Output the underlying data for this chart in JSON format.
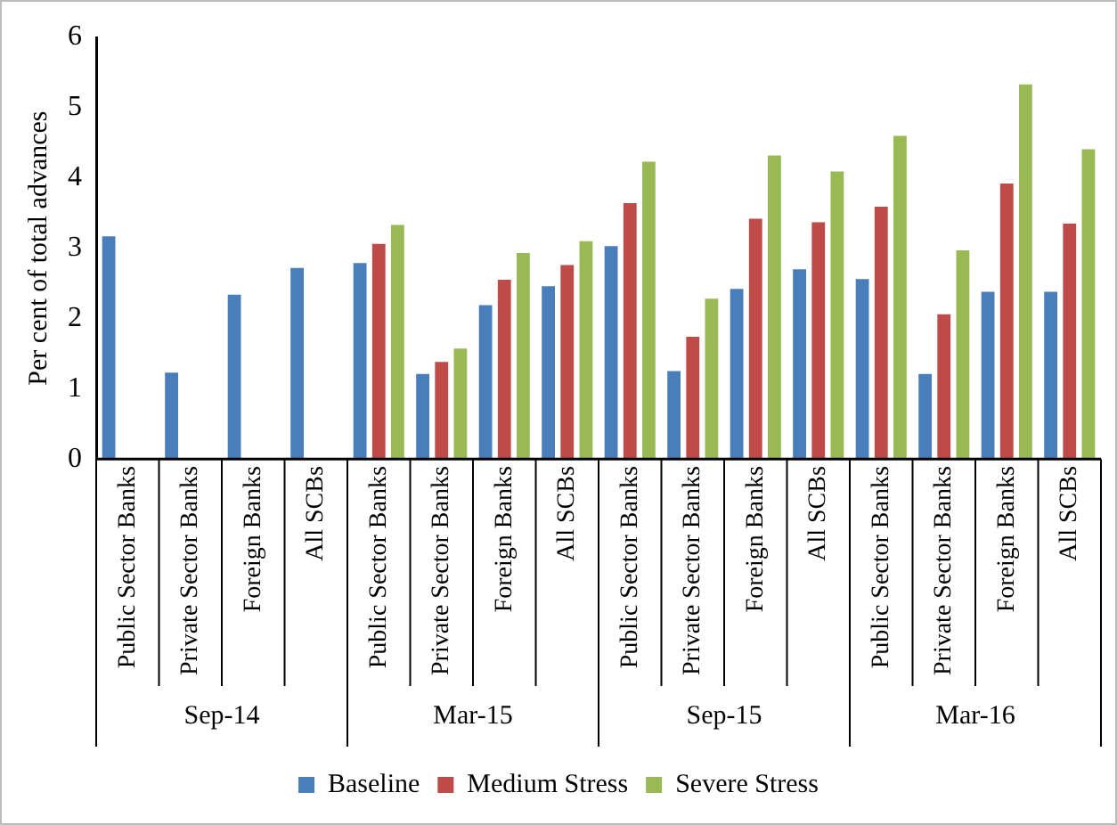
{
  "chart_data": {
    "type": "bar",
    "ylabel": "Per cent of total advances",
    "categories": [
      "Public Sector Banks",
      "Private Sector Banks",
      "Foreign Banks",
      "All SCBs",
      "Public Sector Banks",
      "Private Sector Banks",
      "Foreign Banks",
      "All SCBs",
      "Public Sector Banks",
      "Private Sector Banks",
      "Foreign Banks",
      "All SCBs",
      "Public Sector Banks",
      "Private Sector Banks",
      "Foreign Banks",
      "All SCBs"
    ],
    "series": [
      {
        "name": "Baseline",
        "color": "#4a7ebb",
        "values": [
          3.17,
          1.23,
          2.34,
          2.72,
          2.79,
          1.21,
          2.19,
          2.46,
          3.03,
          1.25,
          2.42,
          2.7,
          2.56,
          1.21,
          2.38,
          2.38
        ]
      },
      {
        "name": "Medium Stress",
        "color": "#be4b48",
        "values": [
          null,
          null,
          null,
          null,
          3.06,
          1.38,
          2.55,
          2.76,
          3.64,
          1.74,
          3.42,
          3.37,
          3.59,
          2.06,
          3.92,
          3.35
        ]
      },
      {
        "name": "Severe Stress",
        "color": "#98b954",
        "values": [
          null,
          null,
          null,
          null,
          3.33,
          1.57,
          2.93,
          3.1,
          4.23,
          2.28,
          4.32,
          4.09,
          4.6,
          2.97,
          5.33,
          4.41
        ]
      }
    ],
    "ylim": [
      0,
      6
    ],
    "yticks": [
      0,
      1,
      2,
      3,
      4,
      5,
      6
    ],
    "annotations": [
      "Sep-14",
      "Mar-15",
      "Sep-15",
      "Mar-16"
    ],
    "legend": "bottom"
  }
}
